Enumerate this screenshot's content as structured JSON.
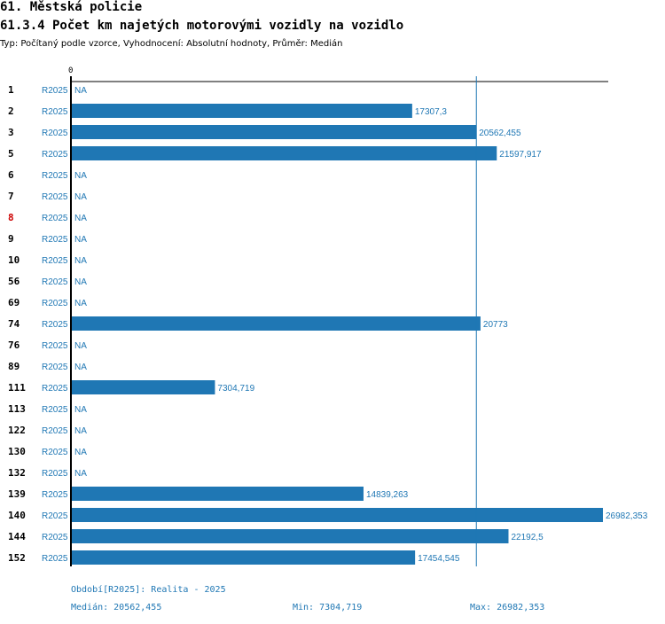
{
  "header": {
    "section": "61. Městská policie",
    "title": "61.3.4 Počet km najetých motorovými vozidly na vozidlo",
    "subtitle": "Typ: Počítaný podle vzorce, Vyhodnocení: Absolutní hodnoty, Průměr: Medián"
  },
  "chart_data": {
    "type": "bar",
    "orientation": "horizontal",
    "title": "61.3.4 Počet km najetých motorovými vozidly na vozidlo",
    "axis_origin_label": "0",
    "xlim": [
      0,
      27500
    ],
    "median_line": 20562.455,
    "bar_color": "#1f77b4",
    "highlight_color": "#cc0000",
    "rows": [
      {
        "id": "1",
        "period": "R2025",
        "value": null,
        "label": "NA"
      },
      {
        "id": "2",
        "period": "R2025",
        "value": 17307.3,
        "label": "17307,3"
      },
      {
        "id": "3",
        "period": "R2025",
        "value": 20562.455,
        "label": "20562,455"
      },
      {
        "id": "5",
        "period": "R2025",
        "value": 21597.917,
        "label": "21597,917"
      },
      {
        "id": "6",
        "period": "R2025",
        "value": null,
        "label": "NA"
      },
      {
        "id": "7",
        "period": "R2025",
        "value": null,
        "label": "NA"
      },
      {
        "id": "8",
        "period": "R2025",
        "value": null,
        "label": "NA",
        "highlight": true
      },
      {
        "id": "9",
        "period": "R2025",
        "value": null,
        "label": "NA"
      },
      {
        "id": "10",
        "period": "R2025",
        "value": null,
        "label": "NA"
      },
      {
        "id": "56",
        "period": "R2025",
        "value": null,
        "label": "NA"
      },
      {
        "id": "69",
        "period": "R2025",
        "value": null,
        "label": "NA"
      },
      {
        "id": "74",
        "period": "R2025",
        "value": 20773,
        "label": "20773"
      },
      {
        "id": "76",
        "period": "R2025",
        "value": null,
        "label": "NA"
      },
      {
        "id": "89",
        "period": "R2025",
        "value": null,
        "label": "NA"
      },
      {
        "id": "111",
        "period": "R2025",
        "value": 7304.719,
        "label": "7304,719"
      },
      {
        "id": "113",
        "period": "R2025",
        "value": null,
        "label": "NA"
      },
      {
        "id": "122",
        "period": "R2025",
        "value": null,
        "label": "NA"
      },
      {
        "id": "130",
        "period": "R2025",
        "value": null,
        "label": "NA"
      },
      {
        "id": "132",
        "period": "R2025",
        "value": null,
        "label": "NA"
      },
      {
        "id": "139",
        "period": "R2025",
        "value": 14839.263,
        "label": "14839,263"
      },
      {
        "id": "140",
        "period": "R2025",
        "value": 26982.353,
        "label": "26982,353"
      },
      {
        "id": "144",
        "period": "R2025",
        "value": 22192.5,
        "label": "22192,5"
      },
      {
        "id": "152",
        "period": "R2025",
        "value": 17454.545,
        "label": "17454,545"
      }
    ]
  },
  "footer": {
    "period_note": "Období[R2025]: Realita - 2025",
    "median": "Medián: 20562,455",
    "min": "Min: 7304,719",
    "max": "Max: 26982,353"
  }
}
